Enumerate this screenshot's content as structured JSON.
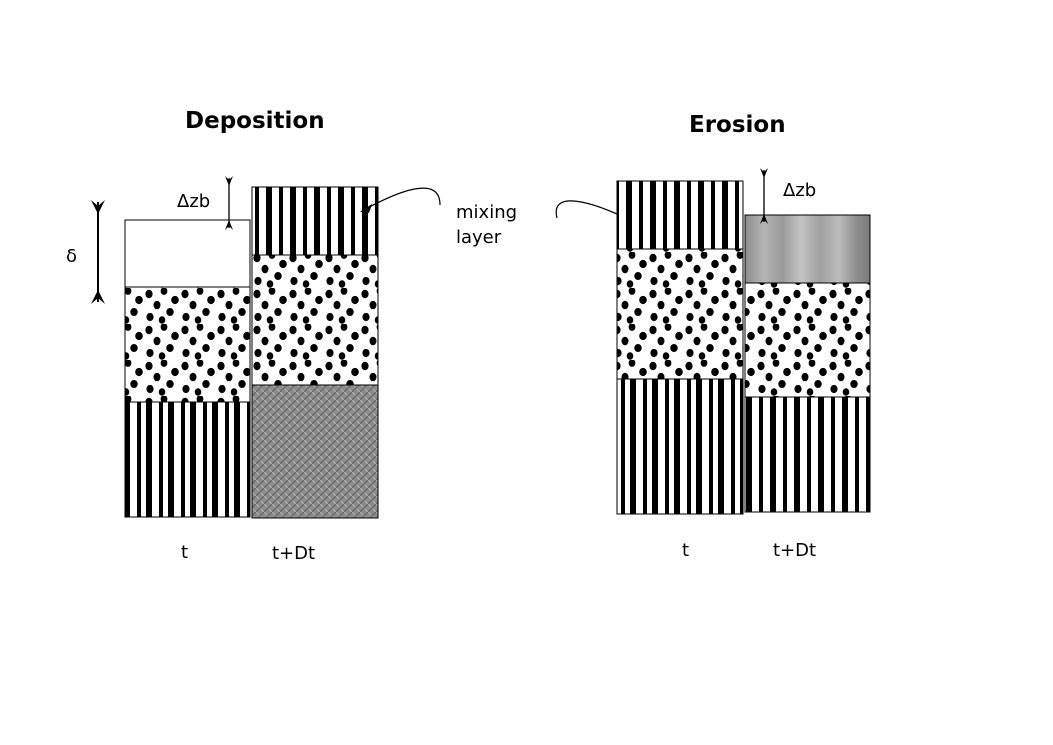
{
  "deposition": {
    "title": "Deposition",
    "delta_label": "δ",
    "dzb_label": "Δzb",
    "time_label_before": "t",
    "time_label_after": "t+Dt"
  },
  "erosion": {
    "title": "Erosion",
    "dzb_label": "Δzb",
    "time_label_before": "t",
    "time_label_after": "t+Dt"
  },
  "annotation": {
    "mixing_line1": "mixing",
    "mixing_line2": "layer"
  },
  "colors": {
    "ink": "#000000",
    "gray_texture": "#8a8a8a",
    "gray_gradient_dark": "#7a7a7a",
    "gray_gradient_light": "#c8c8c8"
  },
  "layers": {
    "deposition_t": [
      "blank",
      "dots",
      "stripes"
    ],
    "deposition_t_plus_dt": [
      "stripes",
      "dots",
      "gray-texture"
    ],
    "erosion_t": [
      "stripes",
      "dots",
      "stripes"
    ],
    "erosion_t_plus_dt": [
      "gray-gradient",
      "dots",
      "stripes"
    ]
  }
}
